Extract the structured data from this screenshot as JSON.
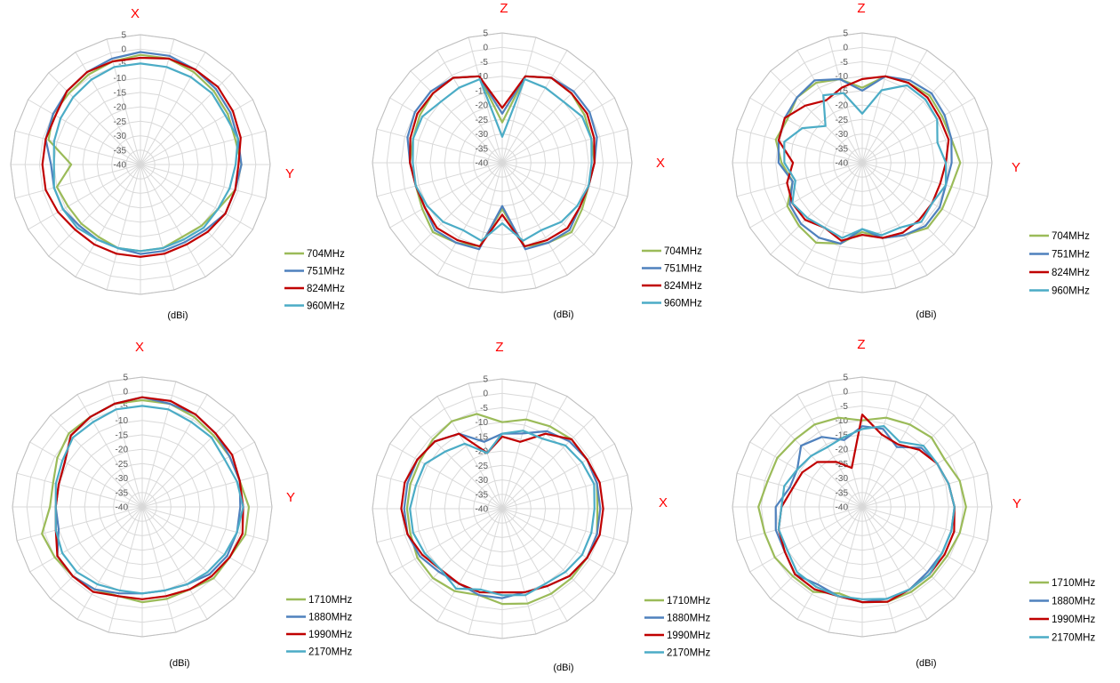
{
  "chart_data": [
    {
      "type": "radar",
      "top_label": "X",
      "side_label": "Y",
      "unit_label": "(dBi)",
      "r_ticks": [
        "5",
        "0",
        "-5",
        "-10",
        "-15",
        "-20",
        "-25",
        "-30",
        "-35",
        "-40"
      ],
      "rlim": [
        -40,
        5
      ],
      "spokes": 24,
      "grid": true,
      "legend_position": "right",
      "series": [
        {
          "name": "704MHz",
          "color": "#9bbb59",
          "values": [
            -2,
            -2,
            -3,
            -4,
            -5,
            -6,
            -5,
            -6,
            -9,
            -10,
            -11,
            -10,
            -10,
            -10,
            -11,
            -11,
            -11,
            -10,
            -16,
            -7,
            -5,
            -5,
            -4,
            -3
          ]
        },
        {
          "name": "751MHz",
          "color": "#4f81bd",
          "values": [
            -1,
            -1,
            -2,
            -3,
            -4,
            -5,
            -5,
            -6,
            -6,
            -8,
            -9,
            -9,
            -9,
            -10,
            -10,
            -10,
            -9,
            -9,
            -9,
            -6,
            -5,
            -4,
            -3,
            -2
          ]
        },
        {
          "name": "824MHz",
          "color": "#c00000",
          "values": [
            -3,
            -2,
            -2,
            -2,
            -3,
            -4,
            -6,
            -6,
            -6,
            -7,
            -8,
            -8,
            -8,
            -8,
            -8,
            -8,
            -7,
            -6,
            -6,
            -6,
            -6,
            -4,
            -3,
            -3
          ]
        },
        {
          "name": "960MHz",
          "color": "#4bacc6",
          "values": [
            -5,
            -5,
            -5,
            -5,
            -6,
            -5,
            -7,
            -8,
            -9,
            -9,
            -10,
            -10,
            -10,
            -10,
            -10,
            -9,
            -9,
            -9,
            -10,
            -9,
            -8,
            -7,
            -6,
            -5
          ]
        }
      ]
    },
    {
      "type": "radar",
      "top_label": "Z",
      "side_label": "X",
      "unit_label": "(dBi)",
      "r_ticks": [
        "5",
        "0",
        "-5",
        "-10",
        "-15",
        "-20",
        "-25",
        "-30",
        "-35",
        "-40"
      ],
      "rlim": [
        -40,
        5
      ],
      "spokes": 24,
      "grid": true,
      "legend_position": "right",
      "series": [
        {
          "name": "704MHz",
          "color": "#9bbb59",
          "values": [
            -26,
            -9,
            -6,
            -6,
            -7,
            -8,
            -8,
            -9,
            -8,
            -6,
            -8,
            -10,
            -24,
            -10,
            -8,
            -6,
            -8,
            -9,
            -8,
            -8,
            -7,
            -6,
            -6,
            -9
          ]
        },
        {
          "name": "751MHz",
          "color": "#4f81bd",
          "values": [
            -23,
            -9,
            -6,
            -5,
            -5,
            -6,
            -8,
            -9,
            -9,
            -7,
            -8,
            -9,
            -25,
            -9,
            -8,
            -7,
            -9,
            -9,
            -8,
            -6,
            -5,
            -5,
            -6,
            -9
          ]
        },
        {
          "name": "824MHz",
          "color": "#c00000",
          "values": [
            -21,
            -9,
            -6,
            -6,
            -6,
            -7,
            -8,
            -9,
            -9,
            -8,
            -9,
            -10,
            -22,
            -10,
            -9,
            -8,
            -9,
            -9,
            -8,
            -7,
            -6,
            -6,
            -6,
            -9
          ]
        },
        {
          "name": "960MHz",
          "color": "#4bacc6",
          "values": [
            -31,
            -10,
            -10,
            -10,
            -8,
            -8,
            -9,
            -9,
            -10,
            -11,
            -13,
            -12,
            -19,
            -12,
            -13,
            -11,
            -10,
            -9,
            -9,
            -8,
            -8,
            -10,
            -10,
            -10
          ]
        }
      ]
    },
    {
      "type": "radar",
      "top_label": "Z",
      "side_label": "Y",
      "unit_label": "(dBi)",
      "r_ticks": [
        "5",
        "0",
        "-5",
        "-10",
        "-15",
        "-20",
        "-25",
        "-30",
        "-35",
        "-40"
      ],
      "rlim": [
        -40,
        5
      ],
      "spokes": 24,
      "grid": true,
      "legend_position": "right",
      "series": [
        {
          "name": "704MHz",
          "color": "#9bbb59",
          "values": [
            -14,
            -9,
            -8,
            -7,
            -8,
            -8,
            -6,
            -8,
            -8,
            -8,
            -11,
            -13,
            -16,
            -11,
            -8,
            -9,
            -10,
            -15,
            -12,
            -9,
            -10,
            -8,
            -8,
            -10
          ]
        },
        {
          "name": "751MHz",
          "color": "#4f81bd",
          "values": [
            -15,
            -9,
            -7,
            -6,
            -7,
            -8,
            -9,
            -10,
            -9,
            -9,
            -11,
            -13,
            -17,
            -11,
            -10,
            -10,
            -11,
            -15,
            -11,
            -10,
            -9,
            -8,
            -7,
            -10
          ]
        },
        {
          "name": "824MHz",
          "color": "#c00000",
          "values": [
            -11,
            -9,
            -8,
            -8,
            -9,
            -9,
            -11,
            -12,
            -12,
            -12,
            -12,
            -13,
            -15,
            -12,
            -14,
            -12,
            -12,
            -13,
            -16,
            -10,
            -9,
            -12,
            -15,
            -13
          ]
        },
        {
          "name": "960MHz",
          "color": "#4bacc6",
          "values": [
            -23,
            -14,
            -9,
            -9,
            -10,
            -13,
            -11,
            -10,
            -12,
            -11,
            -14,
            -14,
            -17,
            -13,
            -14,
            -13,
            -12,
            -16,
            -13,
            -12,
            -16,
            -22,
            -13,
            -15
          ]
        }
      ]
    },
    {
      "type": "radar",
      "top_label": "X",
      "side_label": "Y",
      "unit_label": "(dBi)",
      "r_ticks": [
        "5",
        "0",
        "-5",
        "-10",
        "-15",
        "-20",
        "-25",
        "-30",
        "-35",
        "-40"
      ],
      "rlim": [
        -40,
        5
      ],
      "spokes": 24,
      "grid": true,
      "legend_position": "right",
      "series": [
        {
          "name": "1710MHz",
          "color": "#9bbb59",
          "values": [
            -3,
            -3,
            -4,
            -5,
            -5,
            -5,
            -3,
            -3,
            -5,
            -5,
            -7,
            -7,
            -7,
            -8,
            -7,
            -6,
            -5,
            -4,
            -8,
            -8,
            -6,
            -4,
            -4,
            -3
          ]
        },
        {
          "name": "1880MHz",
          "color": "#4f81bd",
          "values": [
            -2,
            -3,
            -3,
            -4,
            -5,
            -5,
            -6,
            -6,
            -6,
            -7,
            -9,
            -10,
            -10,
            -9,
            -7,
            -6,
            -6,
            -10,
            -10,
            -10,
            -9,
            -5,
            -4,
            -3
          ]
        },
        {
          "name": "1990MHz",
          "color": "#c00000",
          "values": [
            -2,
            -2,
            -3,
            -4,
            -4,
            -5,
            -5,
            -4,
            -5,
            -6,
            -7,
            -8,
            -8,
            -8,
            -6,
            -6,
            -6,
            -9,
            -10,
            -10,
            -9,
            -5,
            -4,
            -3
          ]
        },
        {
          "name": "2170MHz",
          "color": "#4bacc6",
          "values": [
            -5,
            -5,
            -6,
            -6,
            -7,
            -6,
            -5,
            -6,
            -7,
            -8,
            -9,
            -10,
            -10,
            -10,
            -9,
            -8,
            -8,
            -9,
            -10,
            -9,
            -8,
            -6,
            -6,
            -5
          ]
        }
      ]
    },
    {
      "type": "radar",
      "top_label": "Z",
      "side_label": "X",
      "unit_label": "(dBi)",
      "r_ticks": [
        "5",
        "0",
        "-5",
        "-10",
        "-15",
        "-20",
        "-25",
        "-30",
        "-35",
        "-40"
      ],
      "rlim": [
        -40,
        5
      ],
      "spokes": 24,
      "grid": true,
      "legend_position": "right",
      "series": [
        {
          "name": "1710MHz",
          "color": "#9bbb59",
          "values": [
            -10,
            -8,
            -7,
            -6,
            -6,
            -6,
            -7,
            -6,
            -6,
            -6,
            -6,
            -6,
            -7,
            -9,
            -7,
            -6,
            -6,
            -7,
            -7,
            -7,
            -7,
            -6,
            -5,
            -6
          ]
        },
        {
          "name": "1880MHz",
          "color": "#4f81bd",
          "values": [
            -14,
            -13,
            -9,
            -7,
            -6,
            -6,
            -6,
            -6,
            -6,
            -7,
            -9,
            -10,
            -9,
            -9,
            -10,
            -9,
            -7,
            -6,
            -6,
            -6,
            -6,
            -7,
            -10,
            -16
          ]
        },
        {
          "name": "1990MHz",
          "color": "#c00000",
          "values": [
            -15,
            -16,
            -10,
            -6,
            -6,
            -5,
            -5,
            -5,
            -6,
            -7,
            -9,
            -10,
            -11,
            -10,
            -10,
            -10,
            -8,
            -6,
            -5,
            -5,
            -6,
            -7,
            -10,
            -20
          ]
        },
        {
          "name": "2170MHz",
          "color": "#4bacc6",
          "values": [
            -14,
            -12,
            -12,
            -9,
            -8,
            -7,
            -8,
            -8,
            -8,
            -9,
            -10,
            -9,
            -10,
            -11,
            -8,
            -10,
            -9,
            -8,
            -8,
            -9,
            -9,
            -12,
            -14,
            -20
          ]
        }
      ]
    },
    {
      "type": "radar",
      "top_label": "Z",
      "side_label": "Y",
      "unit_label": "(dBi)",
      "r_ticks": [
        "5",
        "0",
        "-5",
        "-10",
        "-15",
        "-20",
        "-25",
        "-30",
        "-35",
        "-40"
      ],
      "rlim": [
        -40,
        5
      ],
      "spokes": 24,
      "grid": true,
      "legend_position": "right",
      "series": [
        {
          "name": "1710MHz",
          "color": "#9bbb59",
          "values": [
            -10,
            -8,
            -7,
            -6,
            -7,
            -5,
            -4,
            -5,
            -6,
            -6,
            -6,
            -6,
            -7,
            -9,
            -6,
            -6,
            -5,
            -5,
            -4,
            -6,
            -6,
            -7,
            -7,
            -8
          ]
        },
        {
          "name": "1880MHz",
          "color": "#4f81bd",
          "values": [
            -12,
            -12,
            -16,
            -11,
            -10,
            -9,
            -8,
            -8,
            -8,
            -8,
            -7,
            -7,
            -7,
            -8,
            -9,
            -7,
            -9,
            -9,
            -10,
            -14,
            -14,
            -10,
            -12,
            -16
          ]
        },
        {
          "name": "1990MHz",
          "color": "#c00000",
          "values": [
            -8,
            -14,
            -15,
            -12,
            -10,
            -9,
            -8,
            -7,
            -7,
            -7,
            -7,
            -6,
            -7,
            -8,
            -7,
            -7,
            -9,
            -10,
            -12,
            -15,
            -16,
            -18,
            -22,
            -26
          ]
        },
        {
          "name": "2170MHz",
          "color": "#4bacc6",
          "values": [
            -13,
            -11,
            -14,
            -10,
            -10,
            -9,
            -8,
            -8,
            -8,
            -7,
            -7,
            -7,
            -8,
            -8,
            -8,
            -8,
            -10,
            -10,
            -12,
            -12,
            -14,
            -15,
            -16,
            -15
          ]
        }
      ]
    }
  ]
}
